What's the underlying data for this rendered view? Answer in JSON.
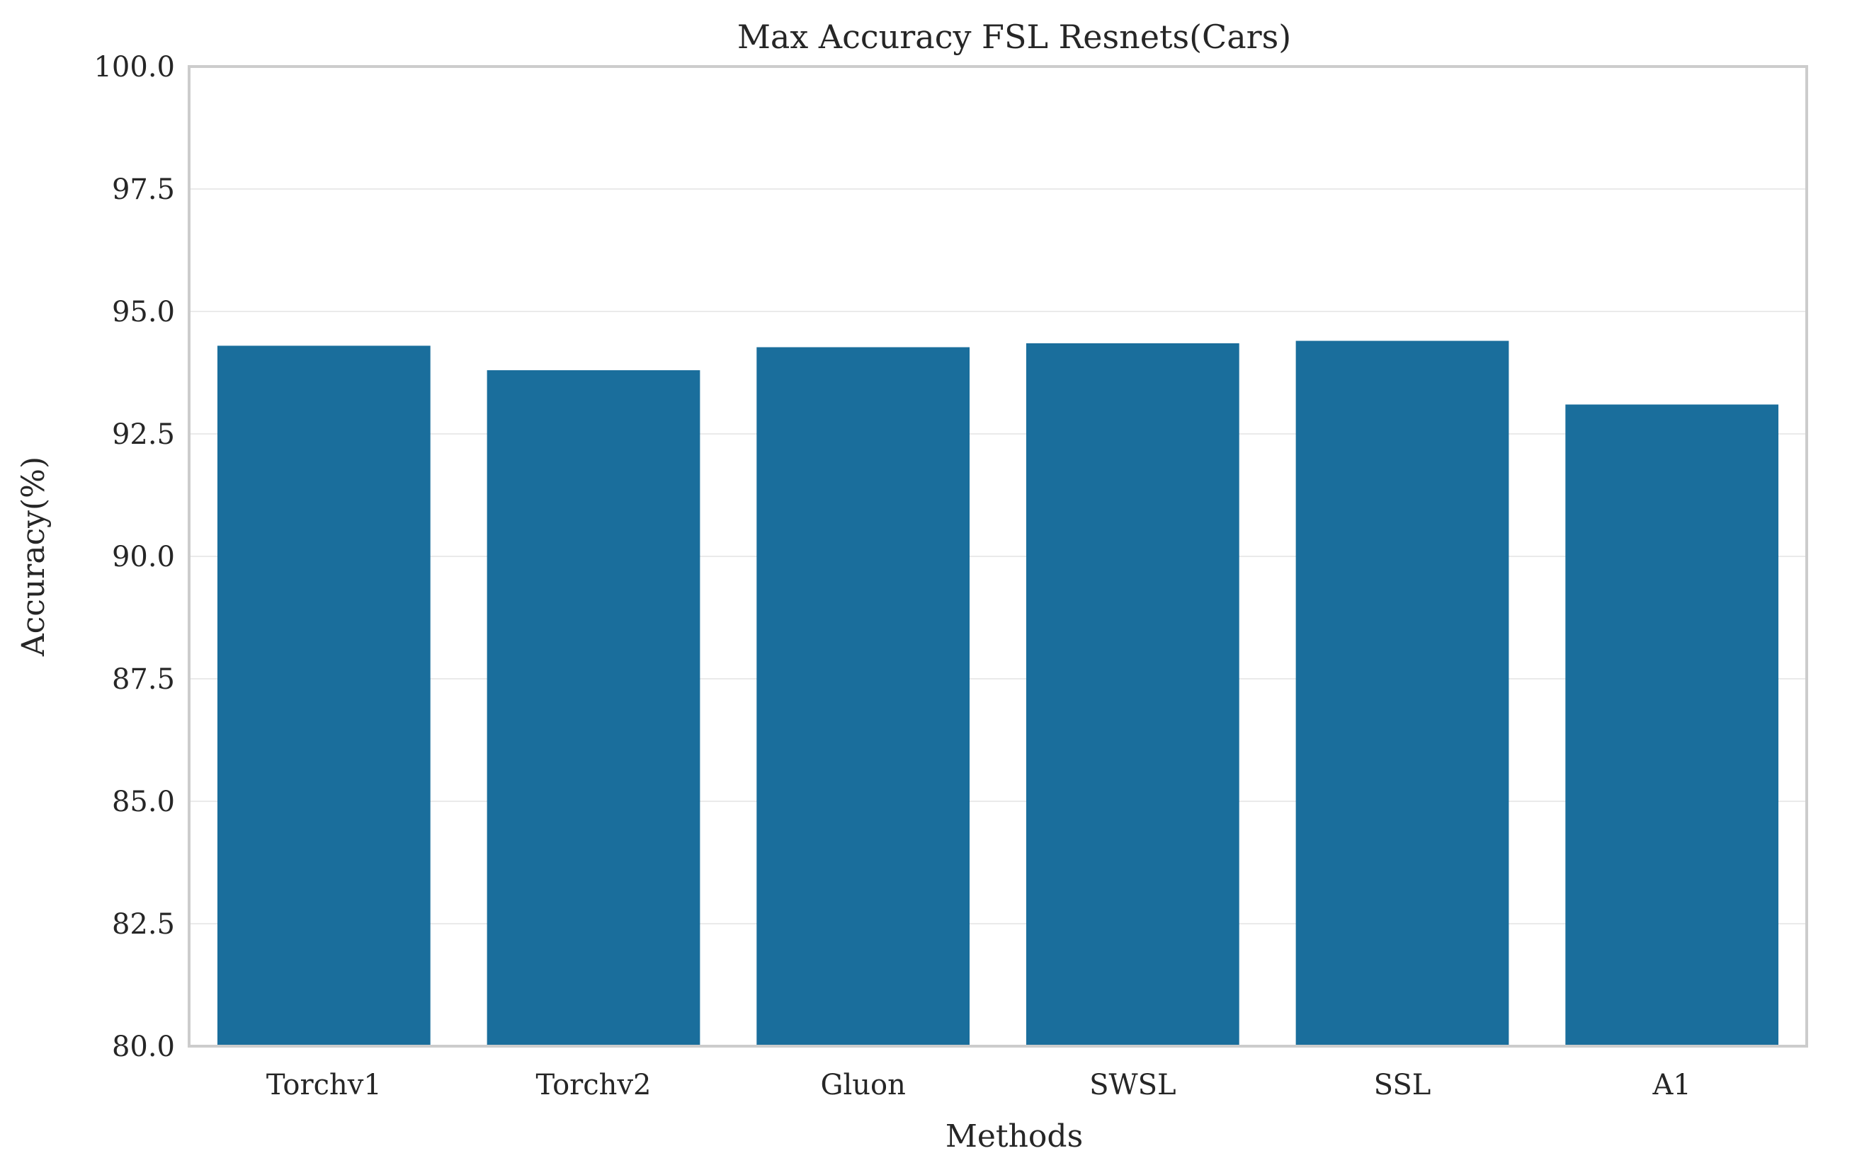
{
  "chart_data": {
    "type": "bar",
    "title": "Max Accuracy FSL Resnets(Cars)",
    "xlabel": "Methods",
    "ylabel": "Accuracy(%)",
    "categories": [
      "Torchv1",
      "Torchv2",
      "Gluon",
      "SWSL",
      "SSL",
      "A1"
    ],
    "values": [
      94.3,
      93.8,
      94.27,
      94.35,
      94.4,
      93.1
    ],
    "ylim": [
      80.0,
      100.0
    ],
    "yticks": [
      "80.0",
      "82.5",
      "85.0",
      "87.5",
      "90.0",
      "92.5",
      "95.0",
      "97.5",
      "100.0"
    ],
    "grid": true,
    "bar_color": "#1a6e9c"
  }
}
